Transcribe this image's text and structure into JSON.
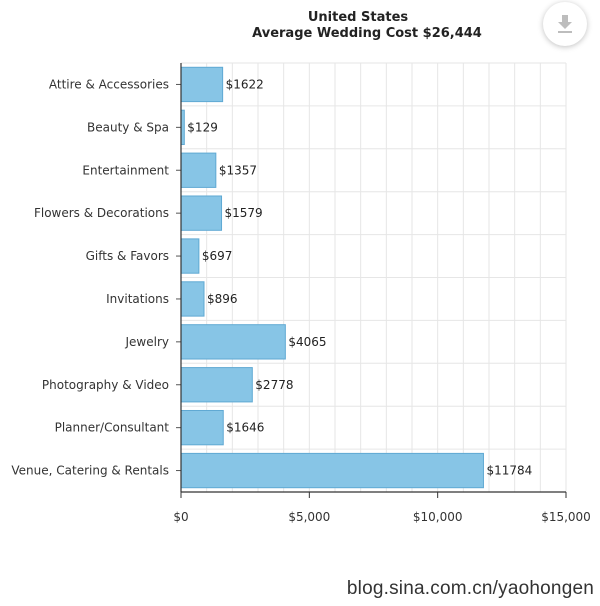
{
  "chart_data": {
    "type": "bar",
    "orientation": "horizontal",
    "title": "United States",
    "subtitle": "Average Wedding Cost $26,444",
    "categories": [
      "Attire & Accessories",
      "Beauty & Spa",
      "Entertainment",
      "Flowers & Decorations",
      "Gifts & Favors",
      "Invitations",
      "Jewelry",
      "Photography & Video",
      "Planner/Consultant",
      "Venue, Catering & Rentals"
    ],
    "values": [
      1622,
      129,
      1357,
      1579,
      697,
      896,
      4065,
      2778,
      1646,
      11784
    ],
    "data_labels": [
      "$1622",
      "$129",
      "$1357",
      "$1579",
      "$697",
      "$896",
      "$4065",
      "$2778",
      "$1646",
      "$11784"
    ],
    "xlim": [
      0,
      15000
    ],
    "xticks": [
      0,
      5000,
      10000,
      15000
    ],
    "xtick_labels": [
      "$0",
      "$5,000",
      "$10,000",
      "$15,000"
    ],
    "grid": true,
    "xlabel": "",
    "ylabel": "",
    "bar_color": "#87c5e6",
    "bar_border_color": "#5fa9d3"
  },
  "toolbar": {
    "download_icon": "download-icon"
  },
  "watermark": "blog.sina.com.cn/yaohongen"
}
